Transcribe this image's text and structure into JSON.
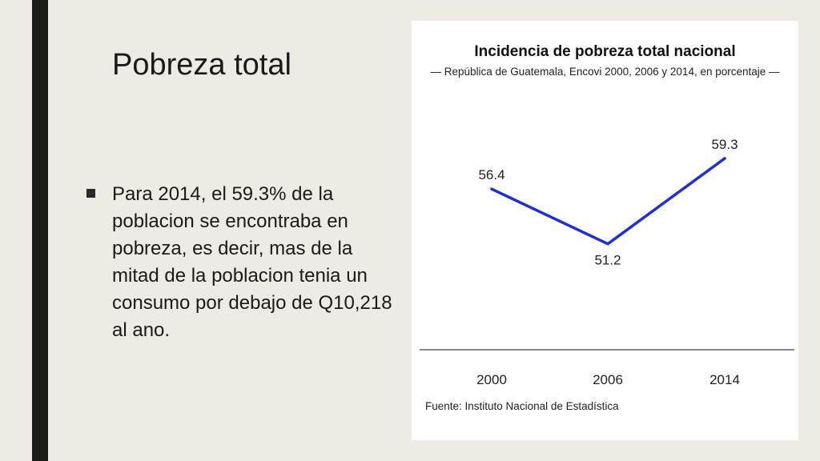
{
  "slide": {
    "title": "Pobreza total",
    "bullet_text": "Para 2014, el 59.3% de la poblacion se encontraba en pobreza, es decir, mas de la mitad de la poblacion tenia un consumo por debajo de Q10,218 al ano."
  },
  "colors": {
    "background": "#eeebe4",
    "sidebar": "#1b1c17",
    "line": "#1f2fd6",
    "axis": "#8a8a8a"
  },
  "chart_data": {
    "type": "line",
    "title": "Incidencia de pobreza total nacional",
    "subtitle": "— República de Guatemala, Encovi 2000, 2006 y 2014, en porcentaje —",
    "categories": [
      "2000",
      "2006",
      "2014"
    ],
    "series": [
      {
        "values": [
          56.4,
          51.2,
          59.3
        ],
        "labels": [
          "56.4",
          "51.2",
          "59.3"
        ]
      }
    ],
    "xlabel": "",
    "ylabel": "",
    "ylim": [
      42,
      64
    ],
    "grid": false,
    "source": "Fuente: Instituto Nacional de Estadística"
  }
}
